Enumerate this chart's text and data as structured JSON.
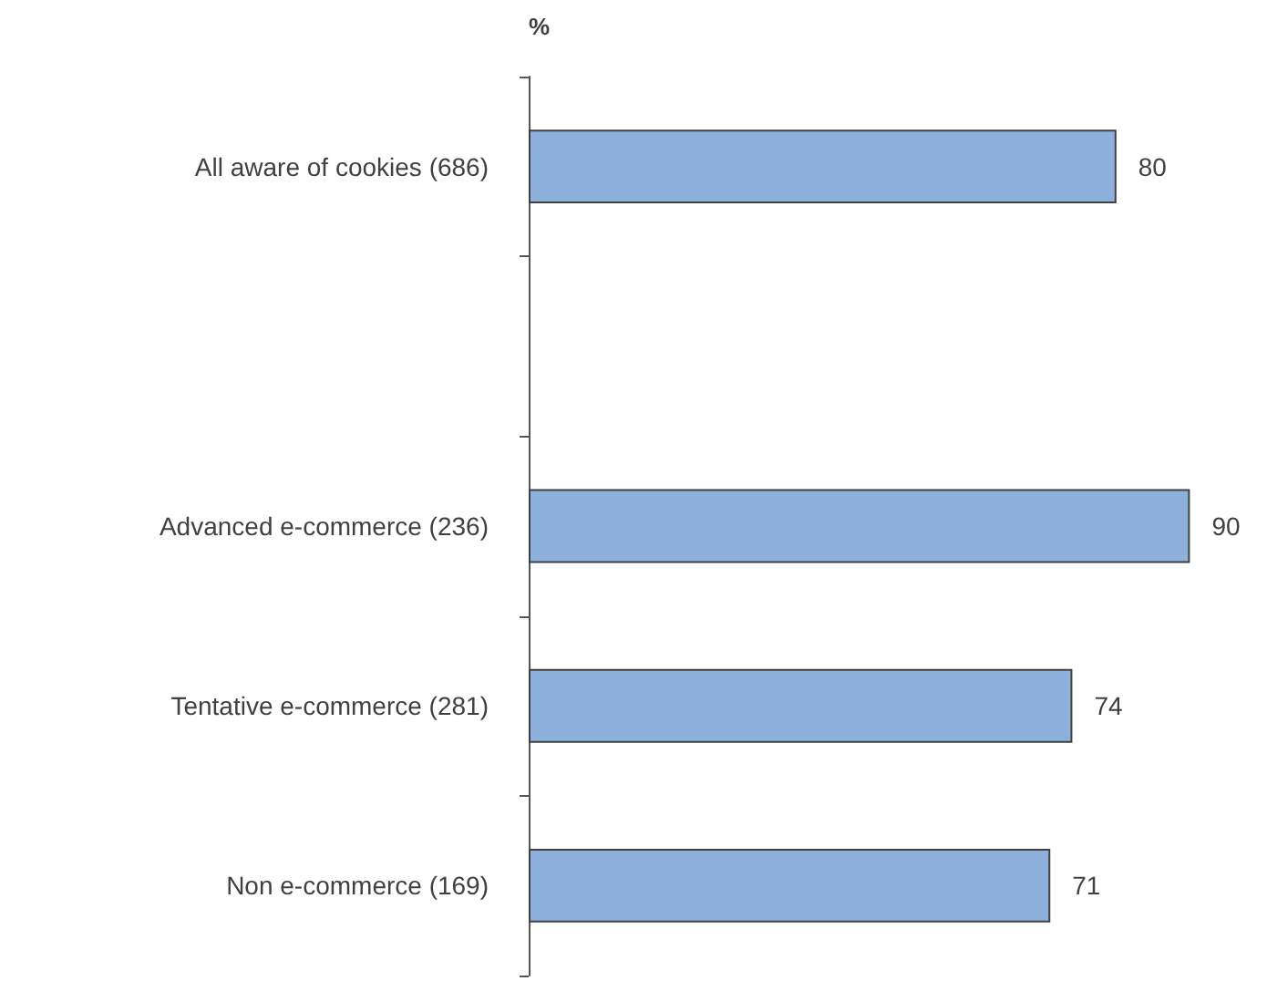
{
  "chart_data": {
    "type": "bar",
    "orientation": "horizontal",
    "xlabel": "%",
    "categories": [
      "All aware of cookies (686)",
      null,
      "Advanced e-commerce (236)",
      "Tentative e-commerce (281)",
      "Non e-commerce (169)"
    ],
    "values": [
      80,
      null,
      90,
      74,
      71
    ],
    "color": "#8eb0dc",
    "data_labels": true,
    "tick_labels": "y"
  }
}
